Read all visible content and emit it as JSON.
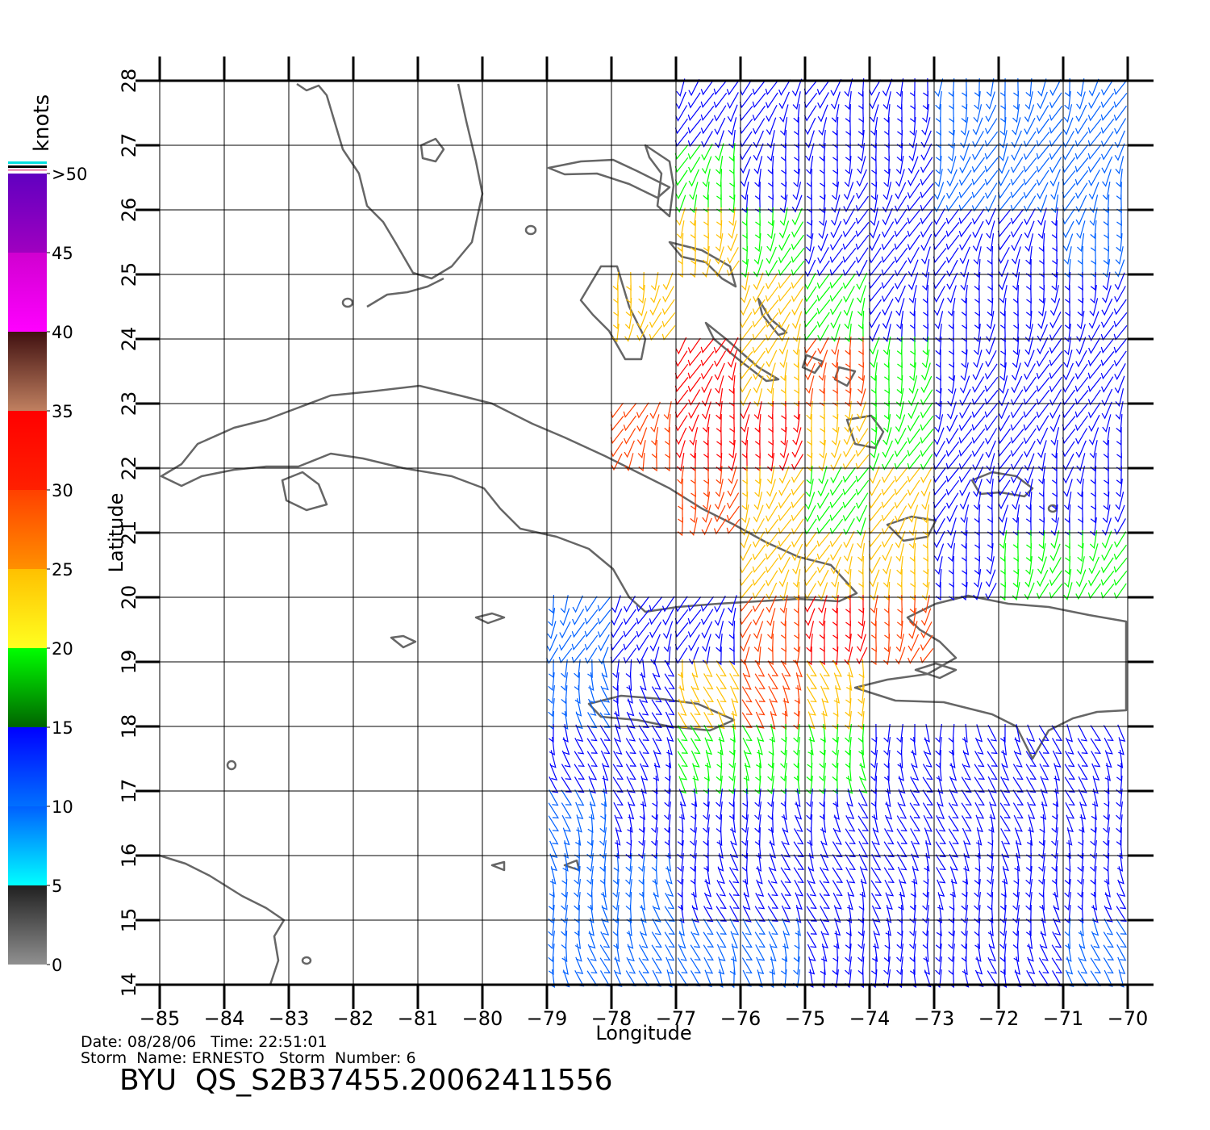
{
  "axes": {
    "x_label": "Longitude",
    "y_label": "Latitude",
    "xlim": [
      -85,
      -70
    ],
    "ylim": [
      14,
      28
    ],
    "xticks": [
      {
        "value": -85,
        "label": "−85"
      },
      {
        "value": -84,
        "label": "−84"
      },
      {
        "value": -83,
        "label": "−83"
      },
      {
        "value": -82,
        "label": "−82"
      },
      {
        "value": -81,
        "label": "−81"
      },
      {
        "value": -80,
        "label": "−80"
      },
      {
        "value": -79,
        "label": "−79"
      },
      {
        "value": -78,
        "label": "−78"
      },
      {
        "value": -77,
        "label": "−77"
      },
      {
        "value": -76,
        "label": "−76"
      },
      {
        "value": -75,
        "label": "−75"
      },
      {
        "value": -74,
        "label": "−74"
      },
      {
        "value": -73,
        "label": "−73"
      },
      {
        "value": -72,
        "label": "−72"
      },
      {
        "value": -71,
        "label": "−71"
      },
      {
        "value": -70,
        "label": "−70"
      }
    ],
    "yticks": [
      14,
      15,
      16,
      17,
      18,
      19,
      20,
      21,
      22,
      23,
      24,
      25,
      26,
      27,
      28
    ]
  },
  "colorbar": {
    "title": "knots",
    "lim": [
      0,
      50
    ],
    "ticks": [
      0,
      5,
      10,
      15,
      20,
      25,
      30,
      35,
      40,
      45,
      {
        "value": 50,
        "label": ">50"
      }
    ],
    "segments": [
      {
        "range": [
          0,
          5
        ],
        "colors": [
          "#909090",
          "#202020"
        ]
      },
      {
        "range": [
          5,
          10
        ],
        "colors": [
          "#00ffff",
          "#0060ff"
        ]
      },
      {
        "range": [
          10,
          15
        ],
        "colors": [
          "#0070ff",
          "#0000ff"
        ]
      },
      {
        "range": [
          15,
          20
        ],
        "colors": [
          "#006400",
          "#00ff00"
        ]
      },
      {
        "range": [
          20,
          25
        ],
        "colors": [
          "#ffff20",
          "#ffc000"
        ]
      },
      {
        "range": [
          25,
          30
        ],
        "colors": [
          "#ff9000",
          "#ff4000"
        ]
      },
      {
        "range": [
          30,
          35
        ],
        "colors": [
          "#ff2000",
          "#ff0000"
        ]
      },
      {
        "range": [
          35,
          40
        ],
        "colors": [
          "#c08060",
          "#401010"
        ]
      },
      {
        "range": [
          40,
          45
        ],
        "colors": [
          "#ff00ff",
          "#d000d0"
        ]
      },
      {
        "range": [
          45,
          50
        ],
        "colors": [
          "#a000c0",
          "#6000c0"
        ]
      }
    ]
  },
  "wind": {
    "lons": [
      -78.5,
      -77.5,
      -76.5,
      -75.5,
      -74.5,
      -73.5,
      -72.5,
      -71.5,
      -70.5
    ],
    "lats": [
      27.5,
      26.5,
      25.5,
      24.5,
      23.5,
      22.5,
      21.5,
      20.5,
      19.5,
      18.5,
      17.5,
      16.5,
      15.5,
      14.5
    ],
    "knots": [
      [
        null,
        null,
        13,
        13,
        12,
        10,
        8,
        7,
        6
      ],
      [
        null,
        null,
        17,
        14,
        13,
        12,
        9,
        8,
        8
      ],
      [
        null,
        null,
        20,
        19,
        14,
        13,
        11,
        10,
        9
      ],
      [
        null,
        21,
        null,
        21,
        17,
        12,
        12,
        11,
        10
      ],
      [
        null,
        null,
        30,
        22,
        28,
        16,
        14,
        12,
        11
      ],
      [
        null,
        27,
        30,
        30,
        22,
        15,
        14,
        13,
        12
      ],
      [
        null,
        null,
        28,
        23,
        18,
        22,
        14,
        13,
        12
      ],
      [
        null,
        null,
        null,
        20,
        20,
        22,
        14,
        17,
        17
      ],
      [
        8,
        10,
        14,
        26,
        30,
        25,
        null,
        null,
        null
      ],
      [
        8,
        12,
        22,
        27,
        20,
        null,
        null,
        null,
        null
      ],
      [
        12,
        12,
        16,
        18,
        16,
        12,
        13,
        13,
        12
      ],
      [
        8,
        10,
        12,
        12,
        12,
        11,
        12,
        12,
        12
      ],
      [
        7,
        9,
        10,
        11,
        11,
        11,
        11,
        10,
        10
      ],
      [
        7,
        7,
        8,
        9,
        10,
        10,
        10,
        10,
        9
      ]
    ]
  },
  "footer": {
    "date_line": "Date: 08/28/06   Time: 22:51:01",
    "storm_line": "Storm  Name: ERNESTO   Storm  Number: 6",
    "product": "BYU  QS_S2B37455.20062411556"
  }
}
